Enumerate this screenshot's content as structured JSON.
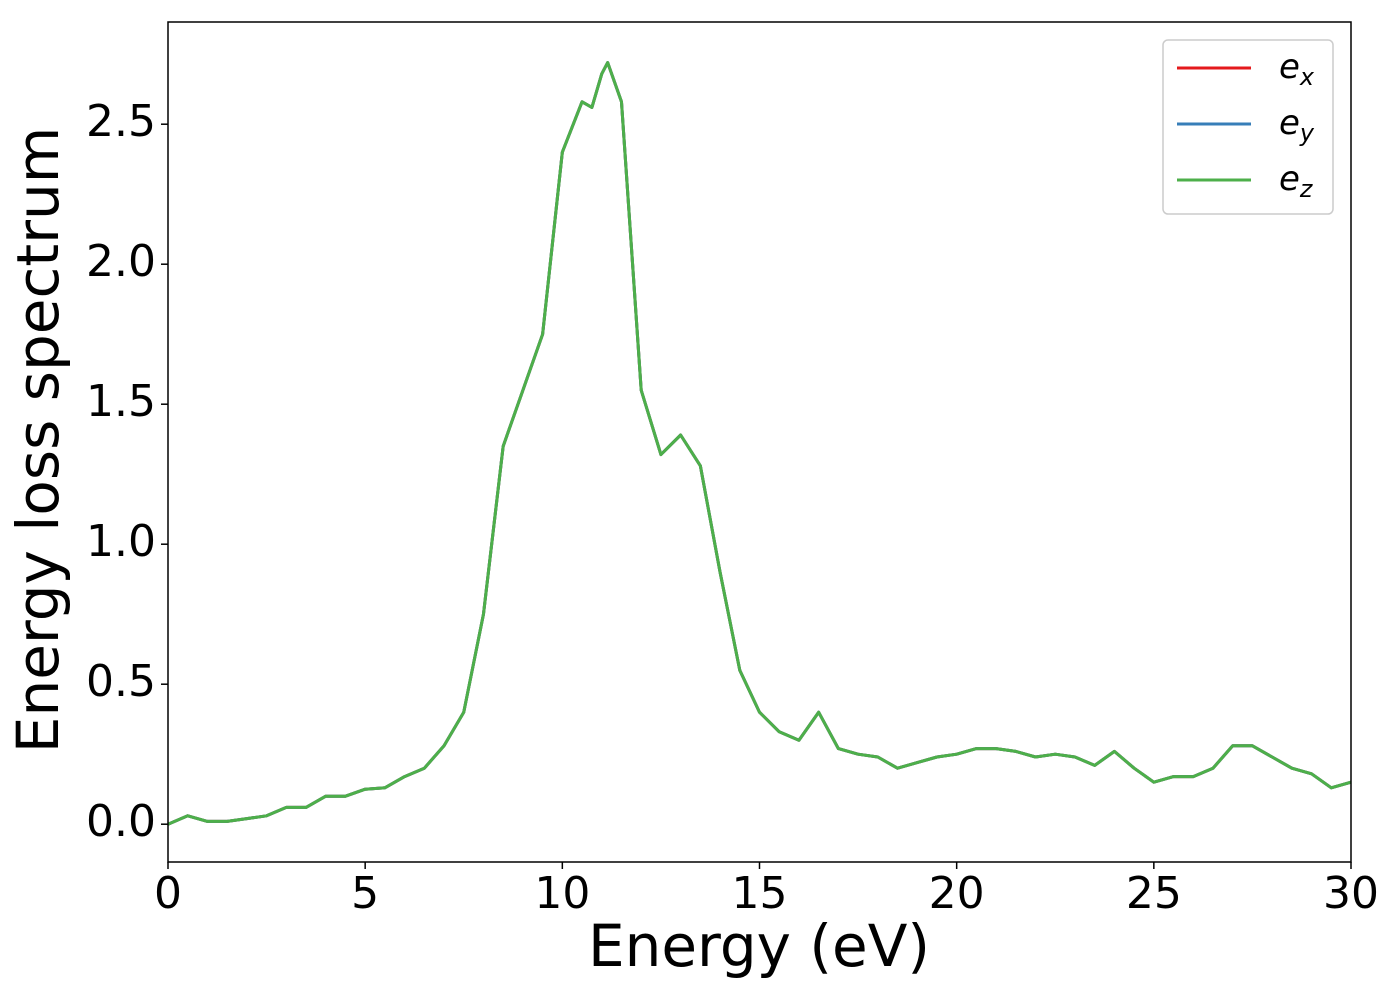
{
  "chart_data": {
    "type": "line",
    "xlabel": "Energy (eV)",
    "ylabel": "Energy loss spectrum",
    "x": [
      0,
      0.5,
      1,
      1.5,
      2,
      2.5,
      3,
      3.5,
      4,
      4.5,
      5,
      5.5,
      6,
      6.5,
      7,
      7.5,
      8,
      8.5,
      9,
      9.5,
      10,
      10.5,
      10.75,
      11,
      11.15,
      11.5,
      12,
      12.5,
      13,
      13.5,
      14,
      14.5,
      15,
      15.5,
      16,
      16.5,
      17,
      17.5,
      18,
      18.5,
      19,
      19.5,
      20,
      20.5,
      21,
      21.5,
      22,
      22.5,
      23,
      23.5,
      24,
      24.5,
      25,
      25.5,
      26,
      26.5,
      27,
      27.5,
      28,
      28.5,
      29,
      29.5,
      30
    ],
    "series": [
      {
        "name": "e_x",
        "color": "#e41a1c",
        "values": [
          0.0,
          0.03,
          0.01,
          0.01,
          0.02,
          0.03,
          0.06,
          0.06,
          0.1,
          0.1,
          0.125,
          0.13,
          0.17,
          0.2,
          0.28,
          0.4,
          0.75,
          1.35,
          1.55,
          1.75,
          2.4,
          2.58,
          2.56,
          2.68,
          2.72,
          2.58,
          1.55,
          1.32,
          1.39,
          1.28,
          0.9,
          0.55,
          0.4,
          0.33,
          0.3,
          0.4,
          0.27,
          0.25,
          0.24,
          0.2,
          0.22,
          0.24,
          0.25,
          0.27,
          0.27,
          0.26,
          0.24,
          0.25,
          0.24,
          0.21,
          0.26,
          0.2,
          0.15,
          0.17,
          0.17,
          0.2,
          0.28,
          0.28,
          0.24,
          0.2,
          0.18,
          0.13,
          0.15
        ]
      },
      {
        "name": "e_y",
        "color": "#377eb8",
        "values": [
          0.0,
          0.03,
          0.01,
          0.01,
          0.02,
          0.03,
          0.06,
          0.06,
          0.1,
          0.1,
          0.125,
          0.13,
          0.17,
          0.2,
          0.28,
          0.4,
          0.75,
          1.35,
          1.55,
          1.75,
          2.4,
          2.58,
          2.56,
          2.68,
          2.72,
          2.58,
          1.55,
          1.32,
          1.39,
          1.28,
          0.9,
          0.55,
          0.4,
          0.33,
          0.3,
          0.4,
          0.27,
          0.25,
          0.24,
          0.2,
          0.22,
          0.24,
          0.25,
          0.27,
          0.27,
          0.26,
          0.24,
          0.25,
          0.24,
          0.21,
          0.26,
          0.2,
          0.15,
          0.17,
          0.17,
          0.2,
          0.28,
          0.28,
          0.24,
          0.2,
          0.18,
          0.13,
          0.15
        ]
      },
      {
        "name": "e_z",
        "color": "#4daf4a",
        "values": [
          0.0,
          0.03,
          0.01,
          0.01,
          0.02,
          0.03,
          0.06,
          0.06,
          0.1,
          0.1,
          0.125,
          0.13,
          0.17,
          0.2,
          0.28,
          0.4,
          0.75,
          1.35,
          1.55,
          1.75,
          2.4,
          2.58,
          2.56,
          2.68,
          2.72,
          2.58,
          1.55,
          1.32,
          1.39,
          1.28,
          0.9,
          0.55,
          0.4,
          0.33,
          0.3,
          0.4,
          0.27,
          0.25,
          0.24,
          0.2,
          0.22,
          0.24,
          0.25,
          0.27,
          0.27,
          0.26,
          0.24,
          0.25,
          0.24,
          0.21,
          0.26,
          0.2,
          0.15,
          0.17,
          0.17,
          0.2,
          0.28,
          0.28,
          0.24,
          0.2,
          0.18,
          0.13,
          0.15
        ]
      }
    ],
    "xlim": [
      0,
      30
    ],
    "xticks": [
      0,
      5,
      10,
      15,
      20,
      25,
      30
    ],
    "ylim": [
      -0.135,
      2.865
    ],
    "yticks": [
      {
        "value": 0,
        "label": "0.0"
      },
      0.5,
      {
        "value": 1,
        "label": "1.0"
      },
      1.5,
      {
        "value": 2,
        "label": "2.0"
      },
      2.5
    ],
    "grid": false,
    "legend": "upper right"
  }
}
